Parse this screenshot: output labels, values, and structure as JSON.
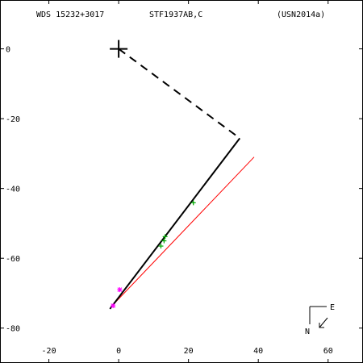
{
  "header": {
    "wds": "WDS 15232+3017",
    "discoverer": "STF1937AB,C",
    "reference": "(USN2014a)"
  },
  "compass": {
    "east": "E",
    "north": "N"
  },
  "colors": {
    "axes": "#000000",
    "orbit": "#000000",
    "reference_line": "#ff0000",
    "obs_green": "#00aa00",
    "obs_magenta": "#ff00ff"
  },
  "chart_data": {
    "type": "scatter",
    "xlim": [
      -34,
      70
    ],
    "ylim": [
      -90,
      14
    ],
    "x_ticks": [
      -20,
      0,
      20,
      40,
      60
    ],
    "y_ticks": [
      0,
      -20,
      -40,
      -60,
      -80
    ],
    "x_tick_labels": [
      "-20",
      "0",
      "20",
      "40",
      "60"
    ],
    "y_tick_labels": [
      "0",
      "-20",
      "-40",
      "-60",
      "-80"
    ],
    "primary": {
      "x": 0,
      "y": 0
    },
    "orbit_path": [
      [
        -2.5,
        -74.5
      ],
      [
        34.7,
        -25.6
      ]
    ],
    "node_line": [
      [
        0,
        0
      ],
      [
        34.7,
        -25.6
      ]
    ],
    "reference_line": [
      [
        -1.8,
        -73.5
      ],
      [
        38.8,
        -31.0
      ]
    ],
    "observations_green": [
      [
        12.1,
        -56.5
      ],
      [
        13.0,
        -55.0
      ],
      [
        13.3,
        -53.8
      ],
      [
        21.4,
        -44.1
      ]
    ],
    "observations_magenta": [
      [
        0.3,
        -69.0
      ],
      [
        -1.6,
        -73.6
      ]
    ]
  }
}
